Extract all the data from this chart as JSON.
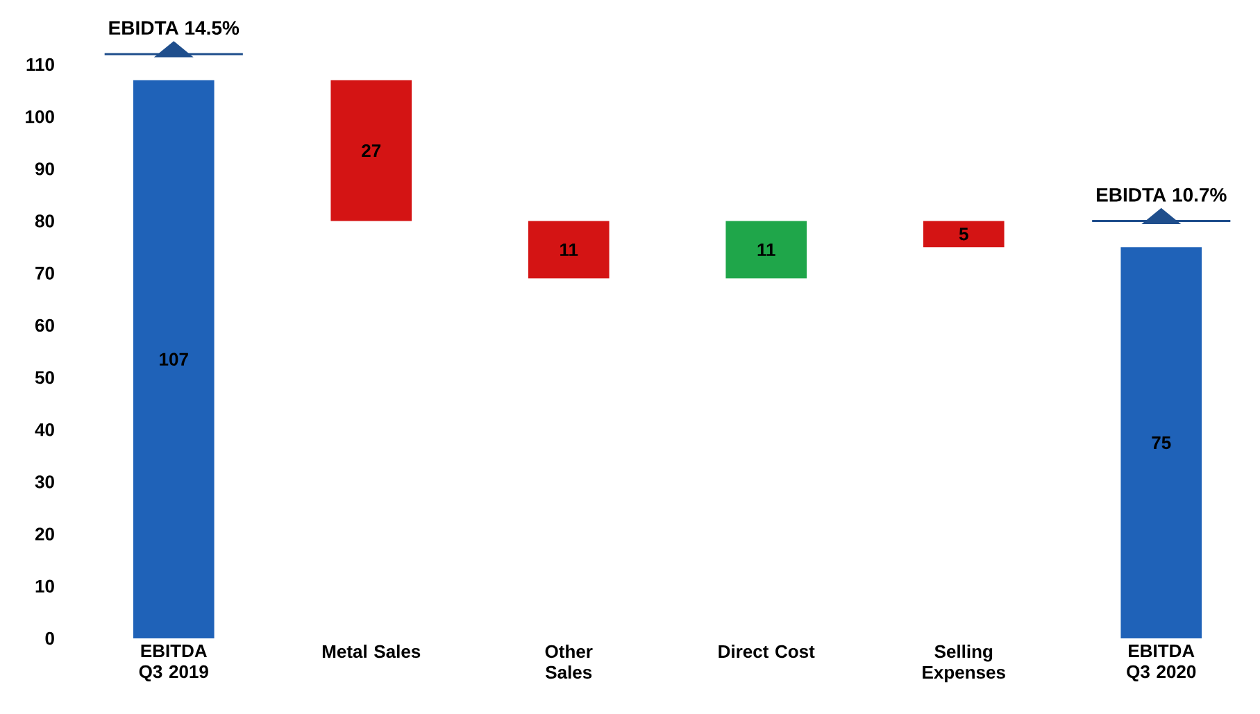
{
  "chart_data": {
    "type": "bar",
    "categories": [
      "EBITDA Q3 2019",
      "Metal Sales",
      "Other Sales",
      "Direct Cost",
      "Selling Expenses",
      "EBITDA Q3 2020"
    ],
    "values": [
      107,
      27,
      11,
      11,
      5,
      75
    ],
    "base": [
      0,
      80,
      69,
      69,
      75,
      0
    ],
    "colors": [
      "#1f62b8",
      "#d41414",
      "#d41414",
      "#1fa64a",
      "#d41414",
      "#1f62b8"
    ],
    "data_labels": true,
    "annotations": [
      "EBIDTA 14.5%",
      "EBIDTA 10.7%"
    ],
    "ylim": [
      0,
      110
    ],
    "yticks": [
      0,
      10,
      20,
      30,
      40,
      50,
      60,
      70,
      80,
      90,
      100,
      110
    ]
  }
}
